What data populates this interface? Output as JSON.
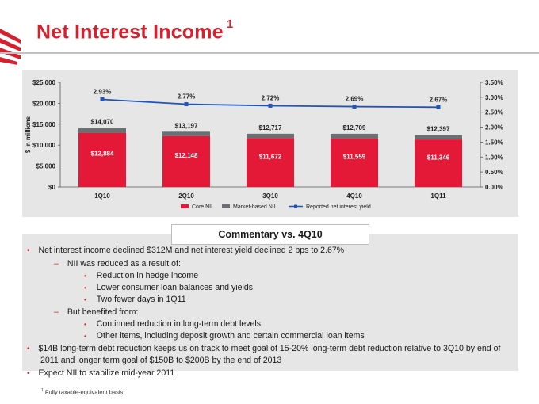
{
  "header": {
    "title": "Net Interest Income",
    "footnote_marker": "1"
  },
  "colors": {
    "accent": "#d6202e",
    "core_bar": "#e31937",
    "market_bar": "#6d6e71",
    "yield_line": "#1f55b8",
    "panel": "#e6e6e6"
  },
  "chart_data": {
    "type": "bar",
    "categories": [
      "1Q10",
      "2Q10",
      "3Q10",
      "4Q10",
      "1Q11"
    ],
    "series": [
      {
        "name": "Core NII",
        "kind": "bar",
        "values": [
          12884,
          12148,
          11672,
          11559,
          11346
        ],
        "labels": [
          "$12,884",
          "$12,148",
          "$11,672",
          "$11,559",
          "$11,346"
        ]
      },
      {
        "name": "Market-based NII",
        "kind": "bar",
        "values": [
          1186,
          1049,
          1045,
          1150,
          1051
        ]
      },
      {
        "name": "Reported net interest yield",
        "kind": "line",
        "axis": "right",
        "values": [
          2.93,
          2.77,
          2.72,
          2.69,
          2.67
        ],
        "labels": [
          "2.93%",
          "2.77%",
          "2.72%",
          "2.69%",
          "2.67%"
        ]
      }
    ],
    "totals": [
      14070,
      13197,
      12717,
      12709,
      12397
    ],
    "total_labels": [
      "$14,070",
      "$13,197",
      "$12,717",
      "$12,709",
      "$12,397"
    ],
    "left_ylim": [
      0,
      25000
    ],
    "right_ylim": [
      0,
      3.5
    ],
    "left_ticks": [
      "$25,000",
      "$20,000",
      "$15,000",
      "$10,000",
      "$5,000",
      "$0"
    ],
    "right_ticks": [
      "3.50%",
      "3.00%",
      "2.50%",
      "2.00%",
      "1.50%",
      "1.00%",
      "0.50%",
      "0.00%"
    ],
    "ylabel": "$ in millions",
    "legend": [
      "Core NII",
      "Market-based NII",
      "Reported net interest yield"
    ],
    "legend_position": "bottom-center",
    "grid": false
  },
  "commentary": {
    "heading": "Commentary vs. 4Q10",
    "bullet_1": "Net interest income declined $312M and net interest yield declined 2 bps to 2.67%",
    "sub_1": "NII was reduced as a result of:",
    "sub_1_items": [
      "Reduction in hedge income",
      "Lower consumer loan balances and yields",
      "Two fewer days in 1Q11"
    ],
    "sub_2": "But benefited from:",
    "sub_2_items": [
      "Continued reduction in long-term debt levels",
      "Other items, including deposit growth and certain commercial loan items"
    ],
    "bullet_2_line1": "$14B long-term debt reduction keeps us on track to meet goal of 15-20% long-term debt reduction relative to 3Q10 by end of",
    "bullet_2_line2": "2011 and longer term goal of $150B to $200B by the end of 2013",
    "bullet_3": "Expect NII to stabilize mid-year 2011"
  },
  "footnote": {
    "marker": "1",
    "text": "Fully taxable-equivalent basis"
  }
}
